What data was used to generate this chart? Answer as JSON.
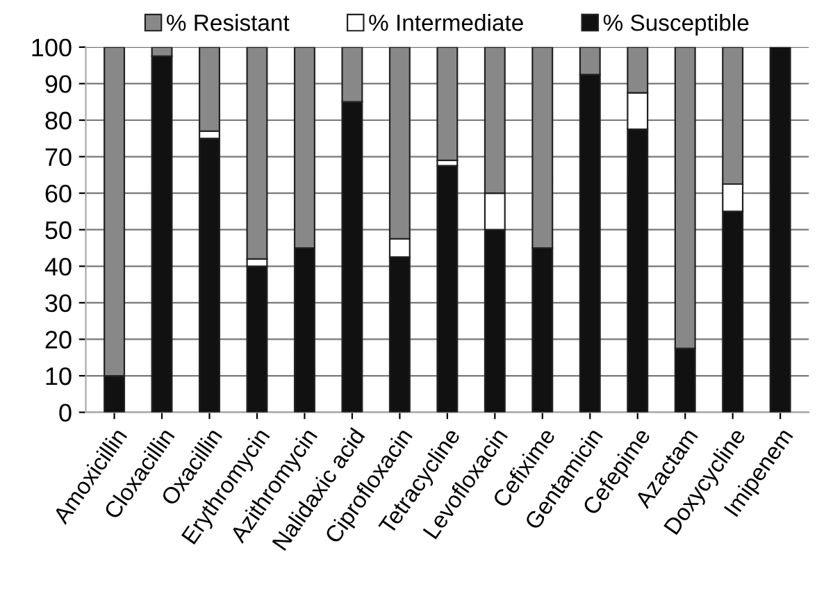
{
  "chart_data": {
    "type": "bar",
    "stacked": true,
    "categories": [
      "Amoxicillin",
      "Cloxacillin",
      "Oxacillin",
      "Erythromycin",
      "Azithromycin",
      "Nalidaxic acid",
      "Ciprofloxacin",
      "Tetracycline",
      "Levofloxacin",
      "Cefixime",
      "Gentamicin",
      "Cefepime",
      "Azactam",
      "Doxycycline",
      "Imipenem"
    ],
    "series": [
      {
        "name": "% Susceptible",
        "color": "#111111",
        "values": [
          10,
          97.5,
          75,
          40,
          45,
          85,
          42.5,
          67.5,
          50,
          45,
          92.5,
          77.5,
          17.5,
          55,
          100
        ]
      },
      {
        "name": "% Intermediate",
        "color": "#ffffff",
        "values": [
          0,
          0,
          2,
          2,
          0,
          0,
          5,
          1.5,
          10,
          0,
          0,
          10,
          0,
          7.5,
          0
        ]
      },
      {
        "name": "% Resistant",
        "color": "#888888",
        "values": [
          90,
          2.5,
          23,
          58,
          55,
          15,
          52.5,
          31,
          40,
          55,
          7.5,
          12.5,
          82.5,
          37.5,
          0
        ]
      }
    ],
    "ylim": [
      0,
      100
    ],
    "yticks": [
      0,
      10,
      20,
      30,
      40,
      50,
      60,
      70,
      80,
      90,
      100
    ],
    "grid": "y",
    "legend": "top"
  }
}
